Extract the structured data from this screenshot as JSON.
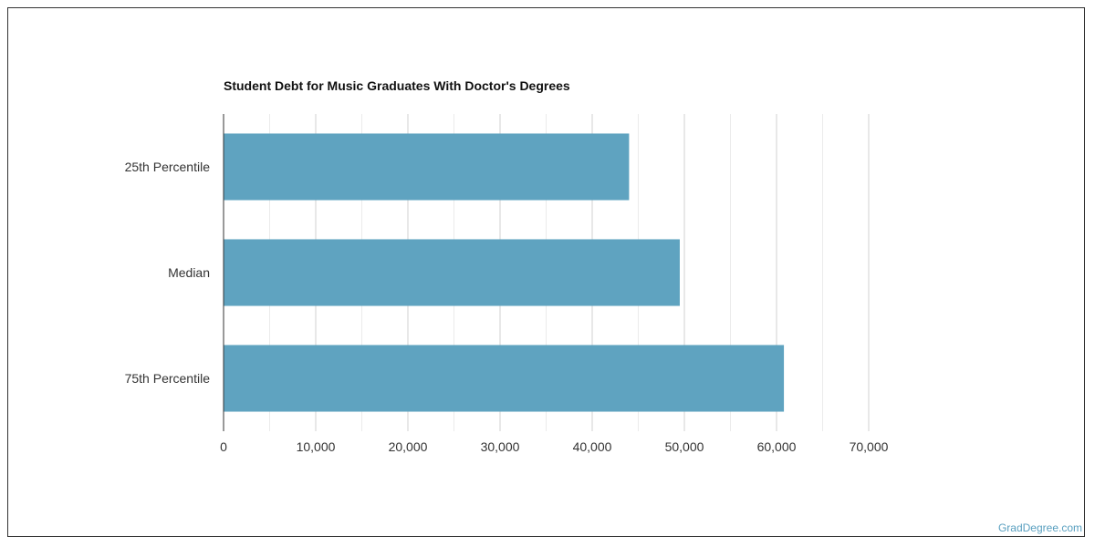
{
  "chart_data": {
    "type": "bar",
    "orientation": "horizontal",
    "title": "Student Debt for Music Graduates With Doctor's Degrees",
    "categories": [
      "25th Percentile",
      "Median",
      "75th Percentile"
    ],
    "values": [
      44000,
      49500,
      60800
    ],
    "xlim": [
      0,
      70000
    ],
    "ticks": [
      0,
      10000,
      20000,
      30000,
      40000,
      50000,
      60000,
      70000
    ],
    "tick_labels": [
      "0",
      "10,000",
      "20,000",
      "30,000",
      "40,000",
      "50,000",
      "60,000",
      "70,000"
    ],
    "grid": true,
    "bar_color": "#5fa3c0"
  },
  "footer": {
    "watermark": "GradDegree.com"
  }
}
